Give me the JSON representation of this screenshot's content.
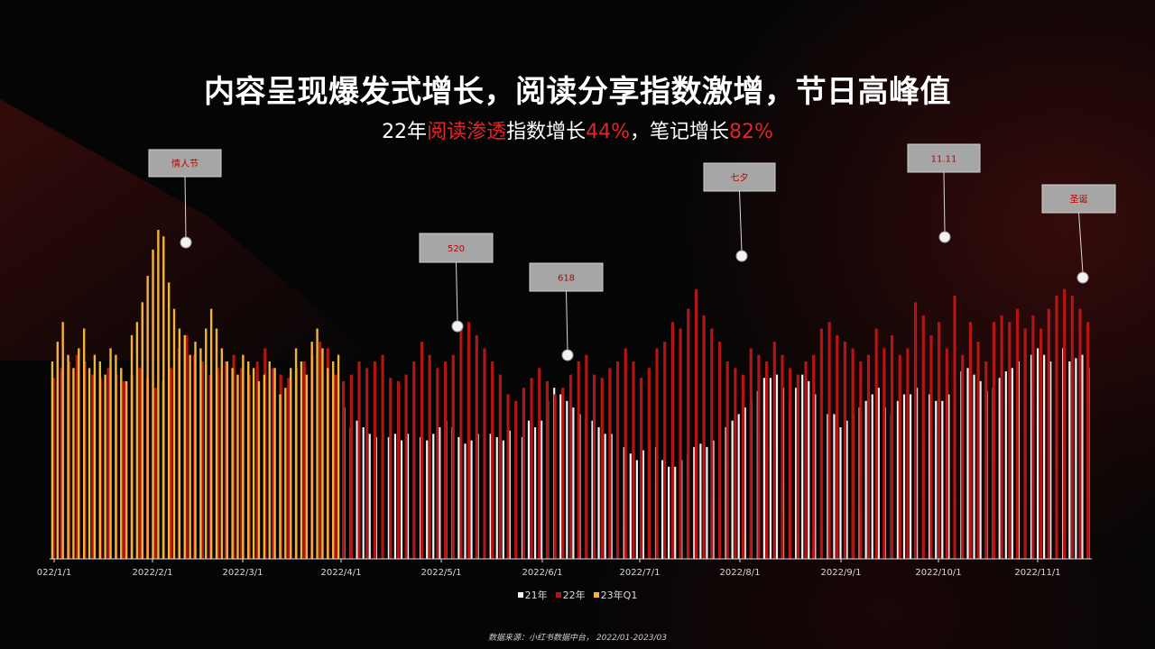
{
  "title": "内容呈现爆发式增长，阅读分享指数激增，节日高峰值",
  "subtitle": {
    "part1": "22年",
    "hl1": "阅读渗透",
    "part2": "指数增长",
    "hl2": "44%",
    "part3": "，笔记增长",
    "hl3": "82%"
  },
  "colors": {
    "s21": "#f2f2f2",
    "s22": "#b31515",
    "s23": "#f0b43a",
    "highlight": "#e0262a",
    "callout_box": "#a6a6a6",
    "callout_text": "#c00000"
  },
  "chart_data": {
    "type": "bar",
    "x_ticks": [
      "022/1/1",
      "2022/2/1",
      "2022/3/1",
      "2022/4/1",
      "2022/5/1",
      "2022/6/1",
      "2022/7/1",
      "2022/8/1",
      "2022/9/1",
      "2022/10/1",
      "2022/11/1"
    ],
    "ylim": [
      0,
      100
    ],
    "grid": false,
    "legend_position": "bottom",
    "series": [
      {
        "name": "21年",
        "color": "#f2f2f2",
        "values": [
          46,
          40,
          42,
          40,
          38,
          37,
          38,
          37,
          38,
          36,
          38,
          38,
          37,
          36,
          38,
          40,
          42,
          40,
          37,
          35,
          36,
          38,
          37,
          38,
          37,
          36,
          39,
          38,
          37,
          42,
          40,
          42,
          48,
          52,
          50,
          48,
          46,
          44,
          43,
          42,
          40,
          38,
          38,
          36,
          34,
          32,
          30,
          33,
          36,
          34,
          30,
          28,
          28,
          30,
          32,
          34,
          35,
          34,
          36,
          38,
          40,
          42,
          44,
          46,
          48,
          51,
          55,
          55,
          56,
          52,
          48,
          52,
          56,
          54,
          50,
          48,
          44,
          44,
          40,
          42,
          44,
          46,
          48,
          50,
          52,
          46,
          44,
          48,
          50,
          50,
          52,
          52,
          50,
          48,
          48,
          50,
          53,
          57,
          58,
          56,
          54,
          51,
          52,
          55,
          57,
          58,
          60,
          62,
          62,
          64,
          62,
          60,
          66,
          64,
          60,
          61,
          62,
          58
        ]
      },
      {
        "name": "22年",
        "color": "#b31515",
        "values": [
          55,
          58,
          60,
          62,
          60,
          56,
          55,
          58,
          56,
          54,
          56,
          58,
          55,
          52,
          54,
          58,
          64,
          68,
          62,
          60,
          56,
          58,
          60,
          62,
          58,
          56,
          60,
          64,
          58,
          56,
          55,
          58,
          60,
          62,
          66,
          64,
          56,
          54,
          56,
          60,
          58,
          60,
          62,
          55,
          54,
          56,
          60,
          66,
          62,
          58,
          60,
          62,
          70,
          72,
          68,
          64,
          60,
          56,
          50,
          48,
          52,
          55,
          58,
          54,
          50,
          52,
          56,
          60,
          62,
          56,
          55,
          58,
          60,
          64,
          60,
          55,
          58,
          64,
          66,
          72,
          70,
          76,
          82,
          74,
          70,
          66,
          60,
          58,
          56,
          64,
          62,
          60,
          66,
          62,
          58,
          56,
          60,
          62,
          70,
          72,
          68,
          66,
          64,
          60,
          62,
          70,
          64,
          68,
          62,
          64,
          78,
          74,
          68,
          72,
          64,
          80,
          62,
          72,
          66,
          60,
          72,
          74,
          72,
          76,
          70,
          74,
          70,
          76,
          80,
          82,
          80,
          76,
          72
        ]
      },
      {
        "name": "23年Q1",
        "color": "#f0b43a",
        "values": [
          60,
          66,
          72,
          62,
          58,
          64,
          70,
          58,
          62,
          60,
          56,
          64,
          62,
          58,
          54,
          68,
          72,
          78,
          86,
          94,
          100,
          98,
          84,
          76,
          70,
          68,
          62,
          66,
          64,
          70,
          76,
          70,
          64,
          60,
          58,
          56,
          62,
          60,
          58,
          54,
          56,
          60,
          58,
          50,
          52,
          58,
          64,
          60,
          56,
          66,
          70,
          64,
          58,
          60,
          62
        ]
      }
    ],
    "annotations": [
      {
        "label": "情人节"
      },
      {
        "label": "520"
      },
      {
        "label": "618"
      },
      {
        "label": "七夕"
      },
      {
        "label": "11.11"
      },
      {
        "label": "圣诞"
      }
    ]
  },
  "legend": {
    "items": [
      "21年",
      "22年",
      "23年Q1"
    ]
  },
  "footer": "数据来源：小红书数据中台， 2022/01-2023/03"
}
